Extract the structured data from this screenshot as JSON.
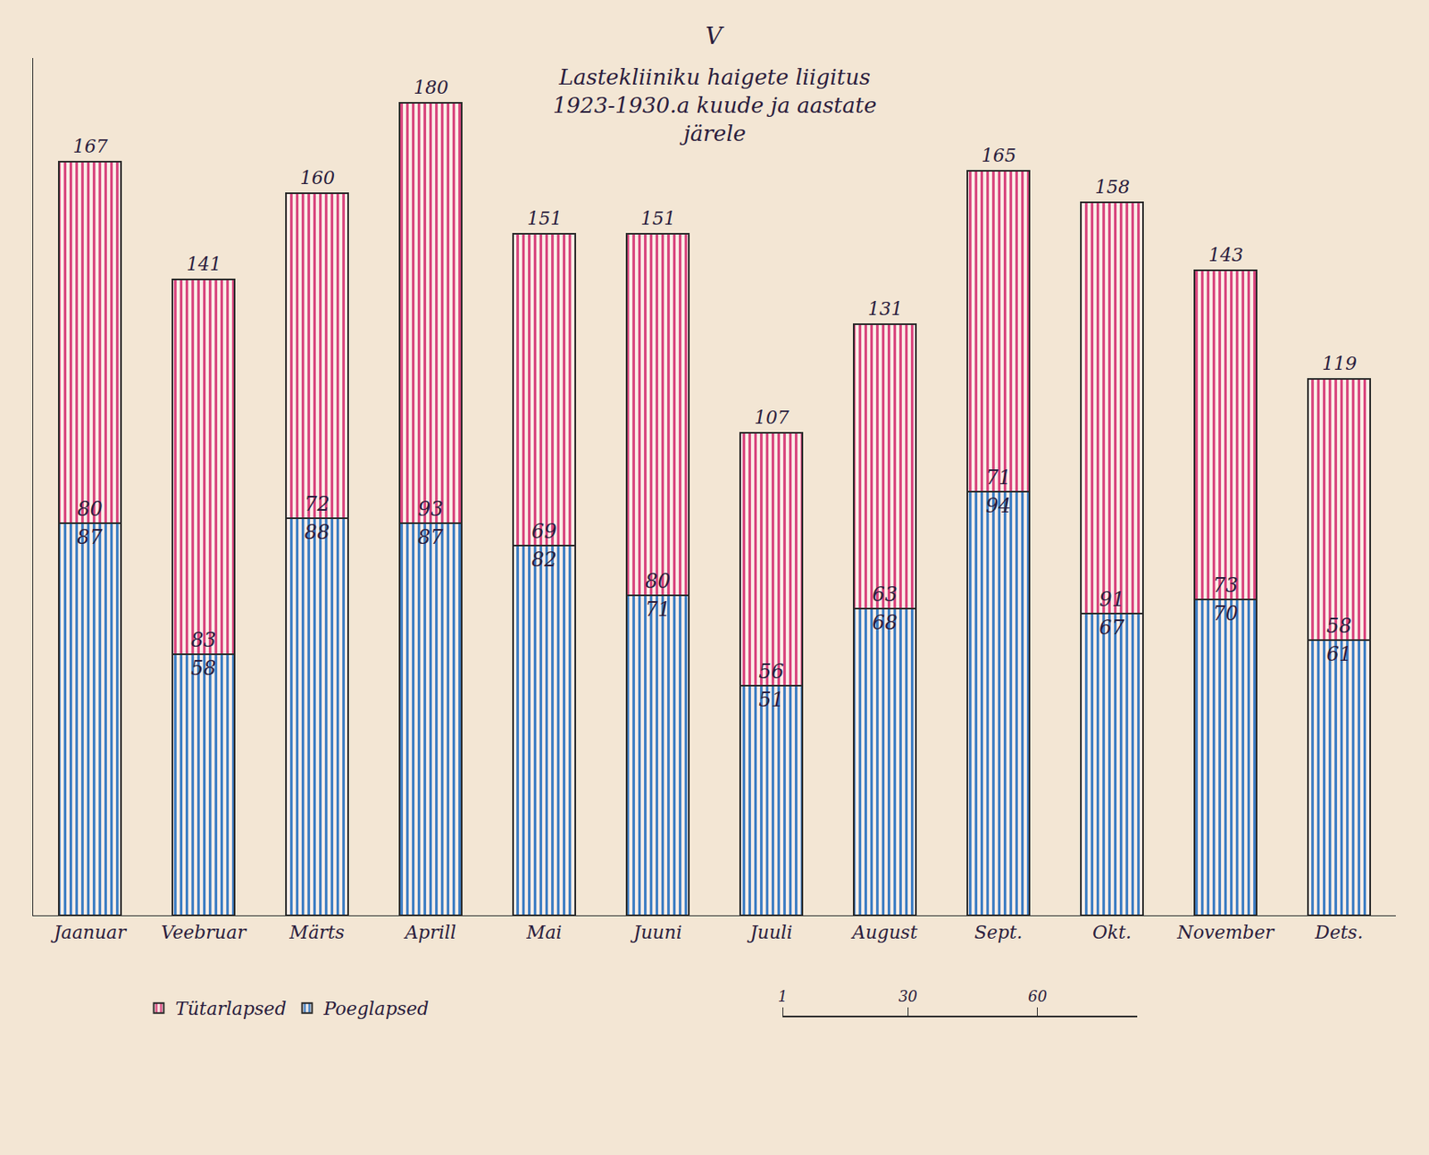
{
  "chart_data": {
    "type": "bar",
    "section": "V",
    "title": "Lastekliiniku haigete liigitus 1923-1930.a kuude ja aastate järele",
    "categories": [
      "Jaanuar",
      "Veebruar",
      "Märts",
      "Aprill",
      "Mai",
      "Juuni",
      "Juuli",
      "August",
      "Sept.",
      "Okt.",
      "November",
      "Dets."
    ],
    "series": [
      {
        "name": "Poeglapsed",
        "color": "#3f7fc4",
        "values": [
          87,
          58,
          88,
          87,
          82,
          71,
          51,
          68,
          94,
          67,
          70,
          61
        ]
      },
      {
        "name": "Tütarlapsed",
        "color": "#d9477f",
        "values": [
          80,
          83,
          72,
          93,
          69,
          80,
          56,
          63,
          71,
          91,
          73,
          58
        ]
      }
    ],
    "totals": [
      167,
      141,
      160,
      180,
      151,
      151,
      107,
      131,
      165,
      158,
      143,
      119
    ],
    "stacked": true,
    "data_labels": true,
    "ylim": [
      0,
      190
    ],
    "yticks": [],
    "tick_labels": "x",
    "grid": false,
    "legend": "bottom left",
    "scale_bar": {
      "xlim": [
        1,
        83
      ],
      "xticks": [
        1,
        30,
        60
      ]
    }
  }
}
